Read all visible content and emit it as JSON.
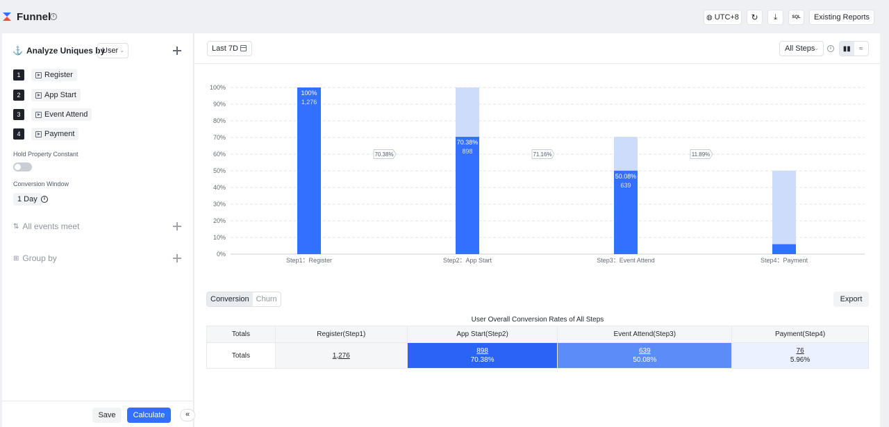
{
  "header": {
    "title": "Funnel",
    "timezone": "UTC+8",
    "sql_label": "SQL",
    "existing_reports": "Existing Reports"
  },
  "left": {
    "analyze_label": "Analyze Uniques by",
    "analyze_select": "User",
    "steps": [
      {
        "num": "1",
        "label": "Register"
      },
      {
        "num": "2",
        "label": "App Start"
      },
      {
        "num": "3",
        "label": "Event Attend"
      },
      {
        "num": "4",
        "label": "Payment"
      }
    ],
    "hold_label": "Hold Property Constant",
    "window_label": "Conversion Window",
    "window_value": "1 Day",
    "events_meet": "All events meet",
    "group_by": "Group by",
    "save": "Save",
    "calculate": "Calculate",
    "collapse": "«"
  },
  "toolbar": {
    "date_range": "Last 7D",
    "steps_select": "All Steps"
  },
  "chart_data": {
    "type": "bar",
    "categories": [
      "Step1：Register",
      "Step2：App Start",
      "Step3：Event Attend",
      "Step4：Payment"
    ],
    "y_ticks": [
      "100%",
      "90%",
      "80%",
      "70%",
      "60%",
      "50%",
      "40%",
      "30%",
      "20%",
      "10%",
      "0%"
    ],
    "ylim": [
      0,
      100
    ],
    "conversion_pct": [
      100,
      70.38,
      50.08,
      5.96
    ],
    "previous_step_pct": [
      100,
      100,
      70.38,
      50.08
    ],
    "bar_labels": [
      {
        "pct": "100%",
        "count": "1,276"
      },
      {
        "pct": "70.38%",
        "count": "898"
      },
      {
        "pct": "50.08%",
        "count": "639"
      },
      null
    ],
    "step_rates": [
      "70.38%",
      "71.16%",
      "11.89%"
    ],
    "colors": {
      "converted": "#3370ff",
      "previous": "#cddcfb"
    },
    "grid": true
  },
  "tabs": [
    "Conversion",
    "Churn"
  ],
  "export": "Export",
  "table": {
    "title": "User Overall Conversion Rates of All Steps",
    "headers": [
      "Totals",
      "Register(Step1)",
      "App Start(Step2)",
      "Event Attend(Step3)",
      "Payment(Step4)"
    ],
    "row_label": "Totals",
    "cells": [
      {
        "count": "1,276",
        "pct": ""
      },
      {
        "count": "898",
        "pct": "70.38%"
      },
      {
        "count": "639",
        "pct": "50.08%"
      },
      {
        "count": "76",
        "pct": "5.96%"
      }
    ]
  }
}
